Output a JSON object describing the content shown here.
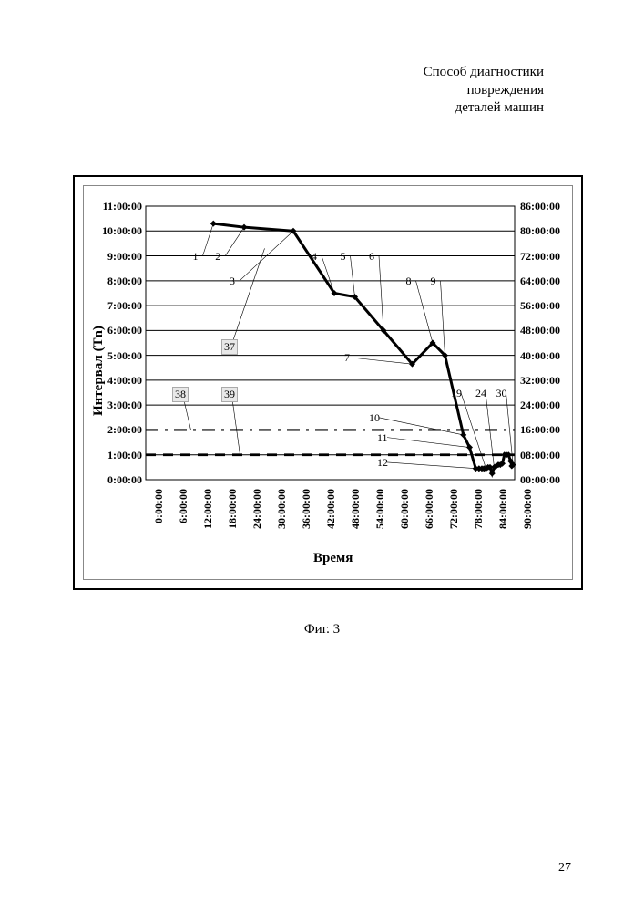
{
  "header_lines": [
    "Способ диагностики",
    "повреждения",
    "деталей машин"
  ],
  "figure_caption": "Фиг. 3",
  "page_number": "27",
  "chart": {
    "type": "line",
    "x_axis": {
      "label": "Время",
      "ticks": [
        "0:00:00",
        "6:00:00",
        "12:00:00",
        "18:00:00",
        "24:00:00",
        "30:00:00",
        "36:00:00",
        "42:00:00",
        "48:00:00",
        "54:00:00",
        "60:00:00",
        "66:00:00",
        "72:00:00",
        "78:00:00",
        "84:00:00",
        "90:00:00"
      ],
      "min_h": 0,
      "max_h": 90,
      "step_h": 6,
      "label_fontsize": 15,
      "tick_fontsize": 12,
      "tick_rotation_deg": 90
    },
    "y_axis_left": {
      "label": "Интервал (Tn)",
      "ticks": [
        "0:00:00",
        "1:00:00",
        "2:00:00",
        "3:00:00",
        "4:00:00",
        "5:00:00",
        "6:00:00",
        "7:00:00",
        "8:00:00",
        "9:00:00",
        "10:00:00",
        "11:00:00"
      ],
      "min_h": 0,
      "max_h": 11,
      "step_h": 1,
      "label_fontsize": 15,
      "tick_fontsize": 12
    },
    "y_axis_right": {
      "ticks": [
        "00:00:00",
        "08:00:00",
        "16:00:00",
        "24:00:00",
        "32:00:00",
        "40:00:00",
        "48:00:00",
        "56:00:00",
        "64:00:00",
        "72:00:00",
        "80:00:00",
        "86:00:00"
      ],
      "min_h": 0,
      "max_h": 88,
      "step_h": 8,
      "tick_fontsize": 12
    },
    "grid": {
      "color": "#000000",
      "line_width": 1
    },
    "background_color": "#ffffff",
    "series": {
      "line_color": "#000000",
      "line_width": 3,
      "marker": "diamond",
      "marker_size": 7,
      "marker_color": "#000000",
      "points": [
        {
          "x_h": 16.5,
          "y_h": 10.3
        },
        {
          "x_h": 24.0,
          "y_h": 10.15
        },
        {
          "x_h": 36.0,
          "y_h": 10.0
        },
        {
          "x_h": 46.0,
          "y_h": 7.5
        },
        {
          "x_h": 51.0,
          "y_h": 7.35
        },
        {
          "x_h": 58.0,
          "y_h": 6.0
        },
        {
          "x_h": 65.0,
          "y_h": 4.65
        },
        {
          "x_h": 70.0,
          "y_h": 5.5
        },
        {
          "x_h": 73.0,
          "y_h": 5.0
        },
        {
          "x_h": 77.5,
          "y_h": 1.8
        },
        {
          "x_h": 79.0,
          "y_h": 1.3
        },
        {
          "x_h": 80.5,
          "y_h": 0.45
        },
        {
          "x_h": 81.3,
          "y_h": 0.45
        },
        {
          "x_h": 82.0,
          "y_h": 0.45
        },
        {
          "x_h": 82.5,
          "y_h": 0.45
        },
        {
          "x_h": 83.0,
          "y_h": 0.45
        },
        {
          "x_h": 83.5,
          "y_h": 0.5
        },
        {
          "x_h": 84.0,
          "y_h": 0.5
        },
        {
          "x_h": 84.5,
          "y_h": 0.25
        },
        {
          "x_h": 85.0,
          "y_h": 0.5
        },
        {
          "x_h": 85.5,
          "y_h": 0.55
        },
        {
          "x_h": 86.0,
          "y_h": 0.6
        },
        {
          "x_h": 86.5,
          "y_h": 0.6
        },
        {
          "x_h": 87.0,
          "y_h": 0.65
        },
        {
          "x_h": 87.5,
          "y_h": 1.0
        },
        {
          "x_h": 88.0,
          "y_h": 1.0
        },
        {
          "x_h": 88.5,
          "y_h": 1.0
        },
        {
          "x_h": 89.0,
          "y_h": 0.75
        },
        {
          "x_h": 89.3,
          "y_h": 0.55
        },
        {
          "x_h": 89.6,
          "y_h": 0.6
        }
      ]
    },
    "ref_lines": [
      {
        "y_h": 2.0,
        "style": "dashdot",
        "color": "#000000",
        "width": 2.2
      },
      {
        "y_h": 1.0,
        "style": "dashed",
        "color": "#000000",
        "width": 2.8
      }
    ],
    "callouts": [
      {
        "label": "1",
        "text_at": {
          "x_h": 13,
          "y_h": 9.0
        },
        "line_to": {
          "x_h": 16.5,
          "y_h": 10.3
        },
        "boxed": false
      },
      {
        "label": "2",
        "text_at": {
          "x_h": 18.5,
          "y_h": 9.0
        },
        "line_to": {
          "x_h": 24,
          "y_h": 10.15
        },
        "boxed": false
      },
      {
        "label": "3",
        "text_at": {
          "x_h": 22,
          "y_h": 8.0
        },
        "line_to": {
          "x_h": 36,
          "y_h": 10.0
        },
        "boxed": false
      },
      {
        "label": "4",
        "text_at": {
          "x_h": 42,
          "y_h": 9.0
        },
        "line_to": {
          "x_h": 46,
          "y_h": 7.5
        },
        "boxed": false
      },
      {
        "label": "5",
        "text_at": {
          "x_h": 49,
          "y_h": 9.0
        },
        "line_to": {
          "x_h": 51,
          "y_h": 7.35
        },
        "boxed": false
      },
      {
        "label": "6",
        "text_at": {
          "x_h": 56,
          "y_h": 9.0
        },
        "line_to": {
          "x_h": 58,
          "y_h": 6.0
        },
        "boxed": false
      },
      {
        "label": "7",
        "text_at": {
          "x_h": 50,
          "y_h": 4.9
        },
        "line_to": {
          "x_h": 65,
          "y_h": 4.65
        },
        "boxed": false
      },
      {
        "label": "8",
        "text_at": {
          "x_h": 65,
          "y_h": 8.0
        },
        "line_to": {
          "x_h": 70,
          "y_h": 5.5
        },
        "boxed": false
      },
      {
        "label": "9",
        "text_at": {
          "x_h": 71,
          "y_h": 8.0
        },
        "line_to": {
          "x_h": 73,
          "y_h": 5.0
        },
        "boxed": false
      },
      {
        "label": "10",
        "text_at": {
          "x_h": 56,
          "y_h": 2.5
        },
        "line_to": {
          "x_h": 77.5,
          "y_h": 1.8
        },
        "boxed": false
      },
      {
        "label": "11",
        "text_at": {
          "x_h": 58,
          "y_h": 1.7
        },
        "line_to": {
          "x_h": 79,
          "y_h": 1.3
        },
        "boxed": false
      },
      {
        "label": "12",
        "text_at": {
          "x_h": 58,
          "y_h": 0.7
        },
        "line_to": {
          "x_h": 80.5,
          "y_h": 0.45
        },
        "boxed": false
      },
      {
        "label": "19",
        "text_at": {
          "x_h": 76,
          "y_h": 3.5
        },
        "line_to": {
          "x_h": 83,
          "y_h": 0.45
        },
        "boxed": false
      },
      {
        "label": "24",
        "text_at": {
          "x_h": 82,
          "y_h": 3.5
        },
        "line_to": {
          "x_h": 85,
          "y_h": 0.5
        },
        "boxed": false
      },
      {
        "label": "30",
        "text_at": {
          "x_h": 87,
          "y_h": 3.5
        },
        "line_to": {
          "x_h": 89.6,
          "y_h": 0.6
        },
        "boxed": false
      },
      {
        "label": "37",
        "text_at": {
          "x_h": 20,
          "y_h": 5.4
        },
        "line_to": {
          "x_h": 29,
          "y_h": 9.3
        },
        "boxed": true
      },
      {
        "label": "38",
        "text_at": {
          "x_h": 8,
          "y_h": 3.5
        },
        "line_to": {
          "x_h": 11,
          "y_h": 2.0
        },
        "boxed": true
      },
      {
        "label": "39",
        "text_at": {
          "x_h": 20,
          "y_h": 3.5
        },
        "line_to": {
          "x_h": 23,
          "y_h": 1.0
        },
        "boxed": true
      }
    ]
  }
}
